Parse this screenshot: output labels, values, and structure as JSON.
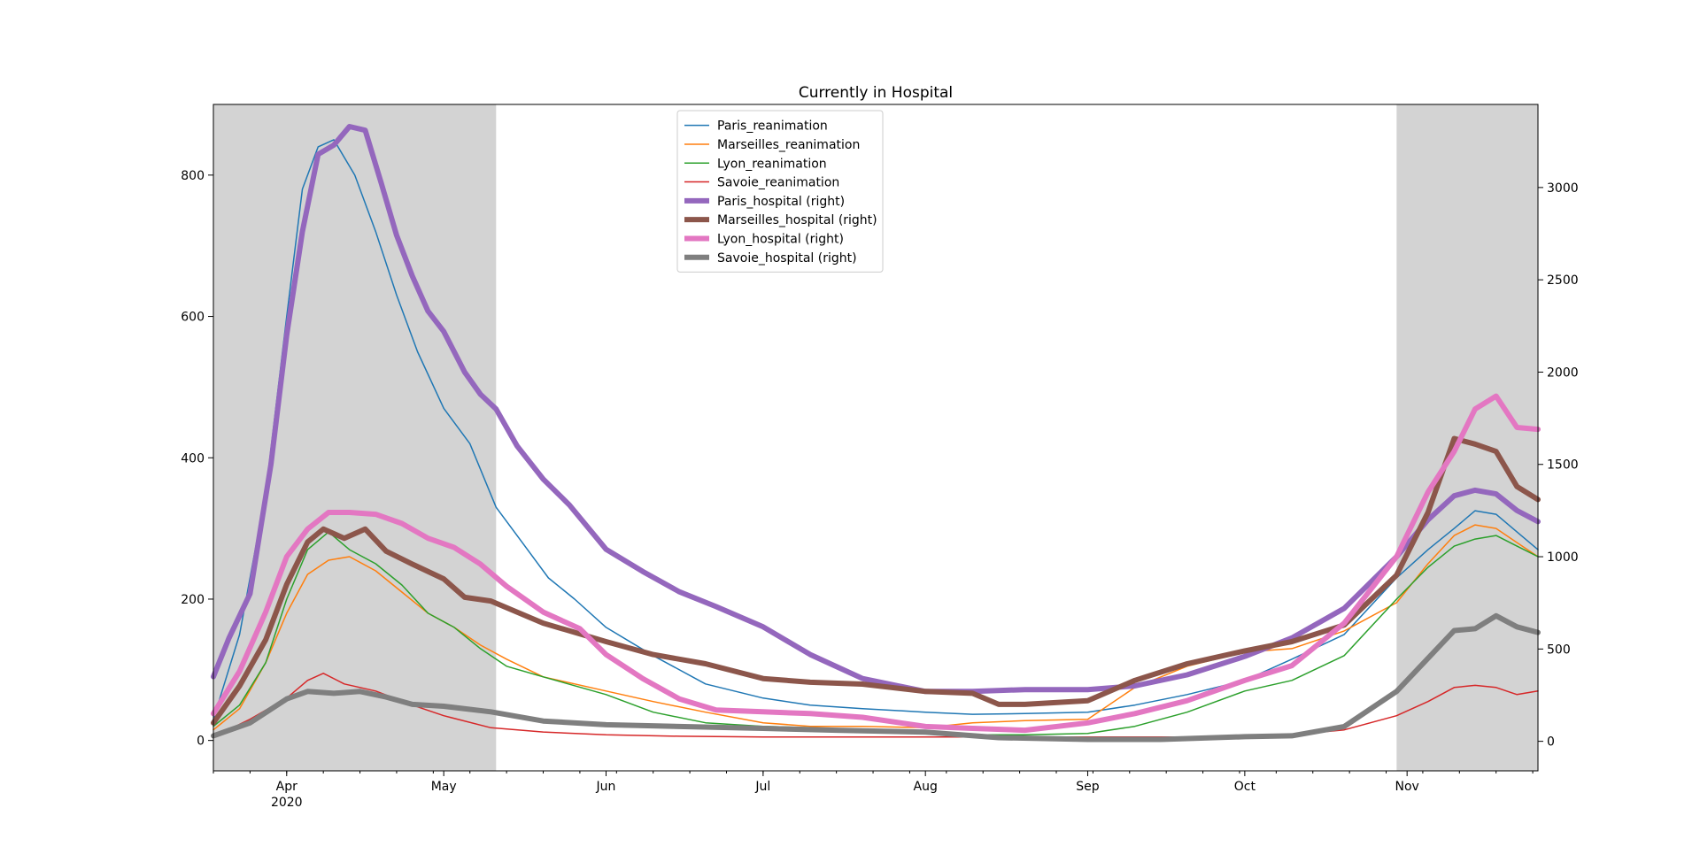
{
  "chart_data": {
    "type": "line",
    "title": "Currently in Hospital",
    "xlabel": "",
    "ylabel": "",
    "y2label": "",
    "x_start": "2020-03-18",
    "x_end": "2020-11-26",
    "x_tick_labels": [
      {
        "date": "2020-04-01",
        "label": "Apr",
        "sublabel": "2020"
      },
      {
        "date": "2020-05-01",
        "label": "May"
      },
      {
        "date": "2020-06-01",
        "label": "Jun"
      },
      {
        "date": "2020-07-01",
        "label": "Jul"
      },
      {
        "date": "2020-08-01",
        "label": "Aug"
      },
      {
        "date": "2020-09-01",
        "label": "Sep"
      },
      {
        "date": "2020-10-01",
        "label": "Oct"
      },
      {
        "date": "2020-11-01",
        "label": "Nov"
      }
    ],
    "ylim_left": [
      -43,
      900
    ],
    "ylim_right": [
      -160,
      3450
    ],
    "yticks_left": [
      0,
      200,
      400,
      600,
      800
    ],
    "yticks_right": [
      0,
      500,
      1000,
      1500,
      2000,
      2500,
      3000
    ],
    "shaded_periods": [
      {
        "start": "2020-03-18",
        "end": "2020-05-11",
        "color": "#d3d3d3"
      },
      {
        "start": "2020-10-30",
        "end": "2020-11-26",
        "color": "#d3d3d3"
      }
    ],
    "legend_position": "upper center",
    "series": [
      {
        "name": "Paris_reanimation",
        "axis": "left",
        "color": "#1f77b4",
        "width": 1.5,
        "x": [
          "2020-03-18",
          "2020-03-23",
          "2020-03-28",
          "2020-04-01",
          "2020-04-04",
          "2020-04-07",
          "2020-04-10",
          "2020-04-14",
          "2020-04-18",
          "2020-04-22",
          "2020-04-26",
          "2020-05-01",
          "2020-05-06",
          "2020-05-11",
          "2020-05-16",
          "2020-05-21",
          "2020-05-26",
          "2020-06-01",
          "2020-06-10",
          "2020-06-20",
          "2020-07-01",
          "2020-07-10",
          "2020-07-20",
          "2020-08-01",
          "2020-08-10",
          "2020-08-20",
          "2020-09-01",
          "2020-09-10",
          "2020-09-20",
          "2020-10-01",
          "2020-10-10",
          "2020-10-20",
          "2020-10-30",
          "2020-11-05",
          "2020-11-10",
          "2020-11-14",
          "2020-11-18",
          "2020-11-22",
          "2020-11-26"
        ],
        "y": [
          30,
          150,
          350,
          600,
          780,
          840,
          850,
          800,
          720,
          630,
          550,
          470,
          420,
          330,
          280,
          230,
          200,
          160,
          120,
          80,
          60,
          50,
          45,
          40,
          37,
          38,
          40,
          50,
          65,
          85,
          115,
          150,
          230,
          270,
          300,
          325,
          320,
          295,
          270
        ]
      },
      {
        "name": "Marseilles_reanimation",
        "axis": "left",
        "color": "#ff7f0e",
        "width": 1.5,
        "x": [
          "2020-03-18",
          "2020-03-23",
          "2020-03-28",
          "2020-04-01",
          "2020-04-05",
          "2020-04-09",
          "2020-04-13",
          "2020-04-18",
          "2020-04-23",
          "2020-04-28",
          "2020-05-03",
          "2020-05-08",
          "2020-05-13",
          "2020-05-20",
          "2020-06-01",
          "2020-06-10",
          "2020-06-20",
          "2020-07-01",
          "2020-07-10",
          "2020-07-20",
          "2020-08-01",
          "2020-08-10",
          "2020-08-20",
          "2020-09-01",
          "2020-09-10",
          "2020-09-20",
          "2020-10-01",
          "2020-10-10",
          "2020-10-20",
          "2020-10-30",
          "2020-11-05",
          "2020-11-10",
          "2020-11-14",
          "2020-11-18",
          "2020-11-22",
          "2020-11-26"
        ],
        "y": [
          15,
          45,
          110,
          180,
          235,
          255,
          260,
          240,
          210,
          180,
          160,
          135,
          115,
          90,
          70,
          55,
          40,
          25,
          20,
          20,
          18,
          25,
          28,
          30,
          75,
          105,
          125,
          130,
          155,
          195,
          250,
          290,
          305,
          300,
          280,
          260
        ]
      },
      {
        "name": "Lyon_reanimation",
        "axis": "left",
        "color": "#2ca02c",
        "width": 1.5,
        "x": [
          "2020-03-18",
          "2020-03-23",
          "2020-03-28",
          "2020-04-01",
          "2020-04-05",
          "2020-04-09",
          "2020-04-13",
          "2020-04-18",
          "2020-04-23",
          "2020-04-28",
          "2020-05-03",
          "2020-05-08",
          "2020-05-13",
          "2020-05-20",
          "2020-06-01",
          "2020-06-10",
          "2020-06-20",
          "2020-07-01",
          "2020-07-10",
          "2020-07-20",
          "2020-08-01",
          "2020-08-10",
          "2020-08-20",
          "2020-09-01",
          "2020-09-10",
          "2020-09-20",
          "2020-10-01",
          "2020-10-10",
          "2020-10-20",
          "2020-10-30",
          "2020-11-05",
          "2020-11-10",
          "2020-11-14",
          "2020-11-18",
          "2020-11-22",
          "2020-11-26"
        ],
        "y": [
          20,
          50,
          110,
          200,
          270,
          295,
          270,
          250,
          220,
          180,
          160,
          130,
          105,
          90,
          65,
          40,
          25,
          20,
          18,
          15,
          10,
          8,
          8,
          10,
          20,
          40,
          70,
          85,
          120,
          200,
          245,
          275,
          285,
          290,
          275,
          260
        ]
      },
      {
        "name": "Savoie_reanimation",
        "axis": "left",
        "color": "#d62728",
        "width": 1.5,
        "x": [
          "2020-03-18",
          "2020-03-25",
          "2020-04-01",
          "2020-04-05",
          "2020-04-08",
          "2020-04-12",
          "2020-04-18",
          "2020-04-25",
          "2020-05-01",
          "2020-05-10",
          "2020-05-20",
          "2020-06-01",
          "2020-06-15",
          "2020-07-01",
          "2020-08-01",
          "2020-09-01",
          "2020-09-20",
          "2020-10-01",
          "2020-10-10",
          "2020-10-20",
          "2020-10-30",
          "2020-11-05",
          "2020-11-10",
          "2020-11-14",
          "2020-11-18",
          "2020-11-22",
          "2020-11-26"
        ],
        "y": [
          5,
          30,
          60,
          85,
          95,
          80,
          70,
          50,
          35,
          18,
          12,
          8,
          6,
          5,
          5,
          5,
          5,
          6,
          8,
          15,
          35,
          55,
          75,
          78,
          75,
          65,
          70
        ]
      },
      {
        "name": "Paris_hospital (right)",
        "axis": "right",
        "color": "#9467bd",
        "width": 6,
        "x": [
          "2020-03-18",
          "2020-03-21",
          "2020-03-25",
          "2020-03-29",
          "2020-04-01",
          "2020-04-04",
          "2020-04-07",
          "2020-04-10",
          "2020-04-13",
          "2020-04-16",
          "2020-04-19",
          "2020-04-22",
          "2020-04-25",
          "2020-04-28",
          "2020-05-01",
          "2020-05-05",
          "2020-05-08",
          "2020-05-11",
          "2020-05-15",
          "2020-05-20",
          "2020-05-25",
          "2020-06-01",
          "2020-06-08",
          "2020-06-15",
          "2020-06-22",
          "2020-07-01",
          "2020-07-10",
          "2020-07-20",
          "2020-08-01",
          "2020-08-10",
          "2020-08-20",
          "2020-09-01",
          "2020-09-10",
          "2020-09-20",
          "2020-10-01",
          "2020-10-10",
          "2020-10-20",
          "2020-10-30",
          "2020-11-05",
          "2020-11-10",
          "2020-11-14",
          "2020-11-18",
          "2020-11-22",
          "2020-11-26"
        ],
        "y": [
          350,
          560,
          800,
          1500,
          2200,
          2760,
          3180,
          3230,
          3330,
          3310,
          3030,
          2740,
          2520,
          2330,
          2220,
          2000,
          1880,
          1800,
          1600,
          1420,
          1280,
          1040,
          920,
          810,
          730,
          620,
          470,
          340,
          270,
          270,
          280,
          280,
          300,
          360,
          460,
          560,
          720,
          1000,
          1200,
          1330,
          1360,
          1340,
          1250,
          1190
        ]
      },
      {
        "name": "Marseilles_hospital (right)",
        "axis": "right",
        "color": "#8c564b",
        "width": 6,
        "x": [
          "2020-03-18",
          "2020-03-23",
          "2020-03-28",
          "2020-04-01",
          "2020-04-05",
          "2020-04-08",
          "2020-04-12",
          "2020-04-16",
          "2020-04-20",
          "2020-04-25",
          "2020-05-01",
          "2020-05-05",
          "2020-05-10",
          "2020-05-20",
          "2020-06-01",
          "2020-06-10",
          "2020-06-20",
          "2020-07-01",
          "2020-07-10",
          "2020-07-20",
          "2020-08-01",
          "2020-08-10",
          "2020-08-15",
          "2020-08-20",
          "2020-09-01",
          "2020-09-10",
          "2020-09-20",
          "2020-10-01",
          "2020-10-10",
          "2020-10-20",
          "2020-10-30",
          "2020-11-05",
          "2020-11-10",
          "2020-11-14",
          "2020-11-18",
          "2020-11-22",
          "2020-11-26"
        ],
        "y": [
          100,
          300,
          550,
          850,
          1080,
          1150,
          1100,
          1150,
          1030,
          960,
          880,
          780,
          760,
          640,
          540,
          470,
          420,
          340,
          320,
          310,
          270,
          260,
          200,
          200,
          220,
          330,
          420,
          490,
          540,
          630,
          900,
          1240,
          1640,
          1610,
          1570,
          1380,
          1310
        ]
      },
      {
        "name": "Lyon_hospital (right)",
        "axis": "right",
        "color": "#e377c2",
        "width": 6,
        "x": [
          "2020-03-18",
          "2020-03-23",
          "2020-03-28",
          "2020-04-01",
          "2020-04-05",
          "2020-04-09",
          "2020-04-13",
          "2020-04-18",
          "2020-04-23",
          "2020-04-28",
          "2020-05-03",
          "2020-05-08",
          "2020-05-13",
          "2020-05-20",
          "2020-05-27",
          "2020-06-01",
          "2020-06-08",
          "2020-06-15",
          "2020-06-22",
          "2020-07-01",
          "2020-07-10",
          "2020-07-20",
          "2020-08-01",
          "2020-08-10",
          "2020-08-20",
          "2020-09-01",
          "2020-09-10",
          "2020-09-20",
          "2020-10-01",
          "2020-10-10",
          "2020-10-20",
          "2020-10-30",
          "2020-11-05",
          "2020-11-10",
          "2020-11-14",
          "2020-11-18",
          "2020-11-22",
          "2020-11-26"
        ],
        "y": [
          150,
          380,
          700,
          1000,
          1150,
          1240,
          1240,
          1230,
          1180,
          1100,
          1050,
          960,
          840,
          700,
          610,
          470,
          340,
          230,
          170,
          160,
          150,
          130,
          80,
          70,
          60,
          100,
          150,
          220,
          330,
          410,
          640,
          1000,
          1350,
          1570,
          1800,
          1870,
          1700,
          1690
        ]
      },
      {
        "name": "Savoie_hospital (right)",
        "axis": "right",
        "color": "#7f7f7f",
        "width": 6,
        "x": [
          "2020-03-18",
          "2020-03-25",
          "2020-04-01",
          "2020-04-05",
          "2020-04-10",
          "2020-04-15",
          "2020-04-20",
          "2020-04-25",
          "2020-05-01",
          "2020-05-10",
          "2020-05-20",
          "2020-06-01",
          "2020-06-15",
          "2020-07-01",
          "2020-07-15",
          "2020-08-01",
          "2020-08-15",
          "2020-09-01",
          "2020-09-15",
          "2020-10-01",
          "2020-10-10",
          "2020-10-20",
          "2020-10-30",
          "2020-11-05",
          "2020-11-10",
          "2020-11-14",
          "2020-11-18",
          "2020-11-22",
          "2020-11-26"
        ],
        "y": [
          30,
          100,
          230,
          270,
          260,
          270,
          240,
          200,
          190,
          160,
          110,
          90,
          80,
          70,
          60,
          50,
          20,
          10,
          10,
          25,
          30,
          80,
          270,
          450,
          600,
          610,
          680,
          620,
          590
        ]
      }
    ]
  }
}
